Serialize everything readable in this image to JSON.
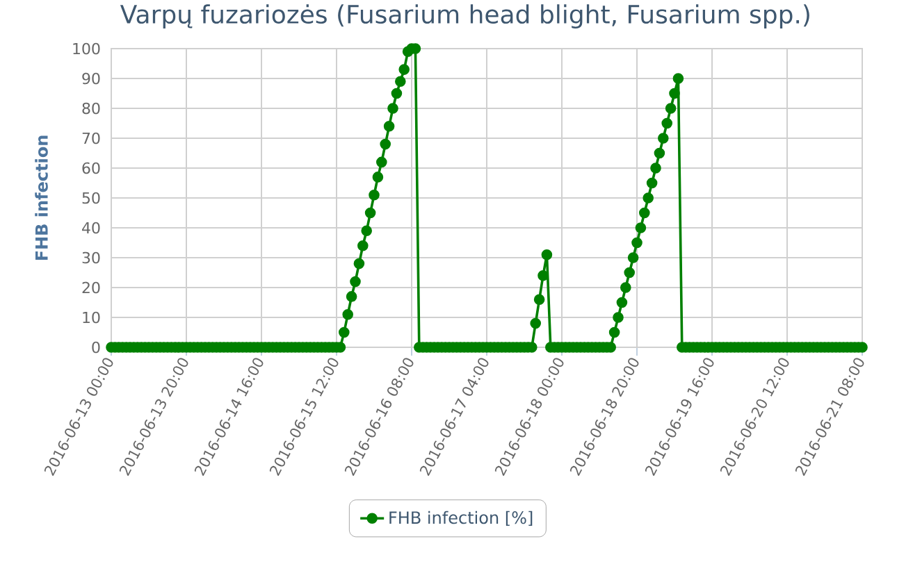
{
  "chart_data": {
    "type": "line",
    "title": "Varpų fuzariozės (Fusarium head blight, Fusarium spp.)",
    "ylabel": "FHB infection",
    "series": [
      {
        "name": "FHB infection [%]",
        "color": "#008000",
        "x": [
          "2016-06-13T00:00",
          "2016-06-13T01:00",
          "2016-06-13T02:00",
          "2016-06-13T03:00",
          "2016-06-13T04:00",
          "2016-06-13T05:00",
          "2016-06-13T06:00",
          "2016-06-13T07:00",
          "2016-06-13T08:00",
          "2016-06-13T09:00",
          "2016-06-13T10:00",
          "2016-06-13T11:00",
          "2016-06-13T12:00",
          "2016-06-13T13:00",
          "2016-06-13T14:00",
          "2016-06-13T15:00",
          "2016-06-13T16:00",
          "2016-06-13T17:00",
          "2016-06-13T18:00",
          "2016-06-13T19:00",
          "2016-06-13T20:00",
          "2016-06-13T21:00",
          "2016-06-13T22:00",
          "2016-06-13T23:00",
          "2016-06-14T00:00",
          "2016-06-14T01:00",
          "2016-06-14T02:00",
          "2016-06-14T03:00",
          "2016-06-14T04:00",
          "2016-06-14T05:00",
          "2016-06-14T06:00",
          "2016-06-14T07:00",
          "2016-06-14T08:00",
          "2016-06-14T09:00",
          "2016-06-14T10:00",
          "2016-06-14T11:00",
          "2016-06-14T12:00",
          "2016-06-14T13:00",
          "2016-06-14T14:00",
          "2016-06-14T15:00",
          "2016-06-14T16:00",
          "2016-06-14T17:00",
          "2016-06-14T18:00",
          "2016-06-14T19:00",
          "2016-06-14T20:00",
          "2016-06-14T21:00",
          "2016-06-14T22:00",
          "2016-06-14T23:00",
          "2016-06-15T00:00",
          "2016-06-15T01:00",
          "2016-06-15T02:00",
          "2016-06-15T03:00",
          "2016-06-15T04:00",
          "2016-06-15T05:00",
          "2016-06-15T06:00",
          "2016-06-15T07:00",
          "2016-06-15T08:00",
          "2016-06-15T09:00",
          "2016-06-15T10:00",
          "2016-06-15T11:00",
          "2016-06-15T12:00",
          "2016-06-15T13:00",
          "2016-06-15T14:00",
          "2016-06-15T15:00",
          "2016-06-15T16:00",
          "2016-06-15T17:00",
          "2016-06-15T18:00",
          "2016-06-15T19:00",
          "2016-06-15T20:00",
          "2016-06-15T21:00",
          "2016-06-15T22:00",
          "2016-06-15T23:00",
          "2016-06-16T00:00",
          "2016-06-16T01:00",
          "2016-06-16T02:00",
          "2016-06-16T03:00",
          "2016-06-16T04:00",
          "2016-06-16T05:00",
          "2016-06-16T06:00",
          "2016-06-16T07:00",
          "2016-06-16T08:00",
          "2016-06-16T09:00",
          "2016-06-16T10:00",
          "2016-06-16T11:00",
          "2016-06-16T12:00",
          "2016-06-16T13:00",
          "2016-06-16T14:00",
          "2016-06-16T15:00",
          "2016-06-16T16:00",
          "2016-06-16T17:00",
          "2016-06-16T18:00",
          "2016-06-16T19:00",
          "2016-06-16T20:00",
          "2016-06-16T21:00",
          "2016-06-16T22:00",
          "2016-06-16T23:00",
          "2016-06-17T00:00",
          "2016-06-17T01:00",
          "2016-06-17T02:00",
          "2016-06-17T03:00",
          "2016-06-17T04:00",
          "2016-06-17T05:00",
          "2016-06-17T06:00",
          "2016-06-17T07:00",
          "2016-06-17T08:00",
          "2016-06-17T09:00",
          "2016-06-17T10:00",
          "2016-06-17T11:00",
          "2016-06-17T12:00",
          "2016-06-17T13:00",
          "2016-06-17T14:00",
          "2016-06-17T15:00",
          "2016-06-17T16:00",
          "2016-06-17T17:00",
          "2016-06-17T18:00",
          "2016-06-17T19:00",
          "2016-06-17T20:00",
          "2016-06-17T21:00",
          "2016-06-17T22:00",
          "2016-06-17T23:00",
          "2016-06-18T00:00",
          "2016-06-18T01:00",
          "2016-06-18T02:00",
          "2016-06-18T03:00",
          "2016-06-18T04:00",
          "2016-06-18T05:00",
          "2016-06-18T06:00",
          "2016-06-18T07:00",
          "2016-06-18T08:00",
          "2016-06-18T09:00",
          "2016-06-18T10:00",
          "2016-06-18T11:00",
          "2016-06-18T12:00",
          "2016-06-18T13:00",
          "2016-06-18T14:00",
          "2016-06-18T15:00",
          "2016-06-18T16:00",
          "2016-06-18T17:00",
          "2016-06-18T18:00",
          "2016-06-18T19:00",
          "2016-06-18T20:00",
          "2016-06-18T21:00",
          "2016-06-18T22:00",
          "2016-06-18T23:00",
          "2016-06-19T00:00",
          "2016-06-19T01:00",
          "2016-06-19T02:00",
          "2016-06-19T03:00",
          "2016-06-19T04:00",
          "2016-06-19T05:00",
          "2016-06-19T06:00",
          "2016-06-19T07:00",
          "2016-06-19T08:00",
          "2016-06-19T09:00",
          "2016-06-19T10:00",
          "2016-06-19T11:00",
          "2016-06-19T12:00",
          "2016-06-19T13:00",
          "2016-06-19T14:00",
          "2016-06-19T15:00",
          "2016-06-19T16:00",
          "2016-06-19T17:00",
          "2016-06-19T18:00",
          "2016-06-19T19:00",
          "2016-06-19T20:00",
          "2016-06-19T21:00",
          "2016-06-19T22:00",
          "2016-06-19T23:00",
          "2016-06-20T00:00",
          "2016-06-20T01:00",
          "2016-06-20T02:00",
          "2016-06-20T03:00",
          "2016-06-20T04:00",
          "2016-06-20T05:00",
          "2016-06-20T06:00",
          "2016-06-20T07:00",
          "2016-06-20T08:00",
          "2016-06-20T09:00",
          "2016-06-20T10:00",
          "2016-06-20T11:00",
          "2016-06-20T12:00",
          "2016-06-20T13:00",
          "2016-06-20T14:00",
          "2016-06-20T15:00",
          "2016-06-20T16:00",
          "2016-06-20T17:00",
          "2016-06-20T18:00",
          "2016-06-20T19:00",
          "2016-06-20T20:00",
          "2016-06-20T21:00",
          "2016-06-20T22:00",
          "2016-06-20T23:00",
          "2016-06-21T00:00",
          "2016-06-21T01:00",
          "2016-06-21T02:00",
          "2016-06-21T03:00",
          "2016-06-21T04:00",
          "2016-06-21T05:00",
          "2016-06-21T06:00",
          "2016-06-21T07:00",
          "2016-06-21T08:00"
        ],
        "values": [
          0,
          0,
          0,
          0,
          0,
          0,
          0,
          0,
          0,
          0,
          0,
          0,
          0,
          0,
          0,
          0,
          0,
          0,
          0,
          0,
          0,
          0,
          0,
          0,
          0,
          0,
          0,
          0,
          0,
          0,
          0,
          0,
          0,
          0,
          0,
          0,
          0,
          0,
          0,
          0,
          0,
          0,
          0,
          0,
          0,
          0,
          0,
          0,
          0,
          0,
          0,
          0,
          0,
          0,
          0,
          0,
          0,
          0,
          0,
          0,
          0,
          0,
          5,
          11,
          17,
          22,
          28,
          34,
          39,
          45,
          51,
          57,
          62,
          68,
          74,
          80,
          85,
          89,
          93,
          99,
          100,
          100,
          0,
          0,
          0,
          0,
          0,
          0,
          0,
          0,
          0,
          0,
          0,
          0,
          0,
          0,
          0,
          0,
          0,
          0,
          0,
          0,
          0,
          0,
          0,
          0,
          0,
          0,
          0,
          0,
          0,
          0,
          0,
          8,
          16,
          24,
          31,
          0,
          0,
          0,
          0,
          0,
          0,
          0,
          0,
          0,
          0,
          0,
          0,
          0,
          0,
          0,
          0,
          0,
          5,
          10,
          15,
          20,
          25,
          30,
          35,
          40,
          45,
          50,
          55,
          60,
          65,
          70,
          75,
          80,
          85,
          90,
          0,
          0,
          0,
          0,
          0,
          0,
          0,
          0,
          0,
          0,
          0,
          0,
          0,
          0,
          0,
          0,
          0,
          0,
          0,
          0,
          0,
          0,
          0,
          0,
          0,
          0,
          0,
          0,
          0,
          0,
          0,
          0,
          0,
          0,
          0,
          0,
          0,
          0,
          0,
          0,
          0,
          0,
          0,
          0,
          0,
          0,
          0,
          0,
          0
        ]
      }
    ],
    "xlim": [
      "2016-06-13T00:00",
      "2016-06-21T08:00"
    ],
    "xticks": [
      {
        "value": "2016-06-13T00:00",
        "label": "2016-06-13 00:00"
      },
      {
        "value": "2016-06-13T20:00",
        "label": "2016-06-13 20:00"
      },
      {
        "value": "2016-06-14T16:00",
        "label": "2016-06-14 16:00"
      },
      {
        "value": "2016-06-15T12:00",
        "label": "2016-06-15 12:00"
      },
      {
        "value": "2016-06-16T08:00",
        "label": "2016-06-16 08:00"
      },
      {
        "value": "2016-06-17T04:00",
        "label": "2016-06-17 04:00"
      },
      {
        "value": "2016-06-18T00:00",
        "label": "2016-06-18 00:00"
      },
      {
        "value": "2016-06-18T20:00",
        "label": "2016-06-18 20:00"
      },
      {
        "value": "2016-06-19T16:00",
        "label": "2016-06-19 16:00"
      },
      {
        "value": "2016-06-20T12:00",
        "label": "2016-06-20 12:00"
      },
      {
        "value": "2016-06-21T08:00",
        "label": "2016-06-21 08:00"
      }
    ],
    "ylim": [
      0,
      100
    ],
    "yticks": [
      0,
      10,
      20,
      30,
      40,
      50,
      60,
      70,
      80,
      90,
      100
    ],
    "grid": true,
    "legend": "bottom",
    "marker": "circle"
  }
}
